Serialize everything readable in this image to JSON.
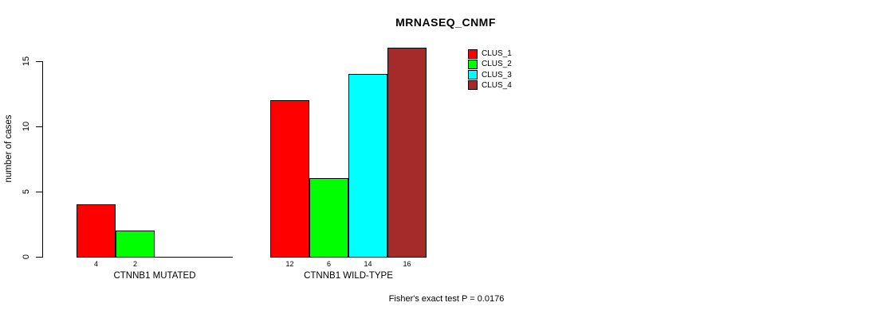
{
  "chart_data": {
    "type": "bar",
    "title": "MRNASEQ_CNMF",
    "ylabel": "number of cases",
    "xlabel": "",
    "yticks": [
      0,
      5,
      10,
      15
    ],
    "ylim": [
      0,
      16
    ],
    "grid": false,
    "legend_position": "top-right",
    "annotation": "Fisher's exact test P = 0.0176",
    "series": [
      {
        "name": "CLUS_1",
        "color": "#FF0000"
      },
      {
        "name": "CLUS_2",
        "color": "#00FF00"
      },
      {
        "name": "CLUS_3",
        "color": "#00FFFF"
      },
      {
        "name": "CLUS_4",
        "color": "#A52A2A"
      }
    ],
    "groups": [
      {
        "label": "CTNNB1 MUTATED",
        "values": [
          4,
          2,
          0,
          0
        ]
      },
      {
        "label": "CTNNB1 WILD-TYPE",
        "values": [
          12,
          6,
          14,
          16
        ]
      }
    ]
  }
}
